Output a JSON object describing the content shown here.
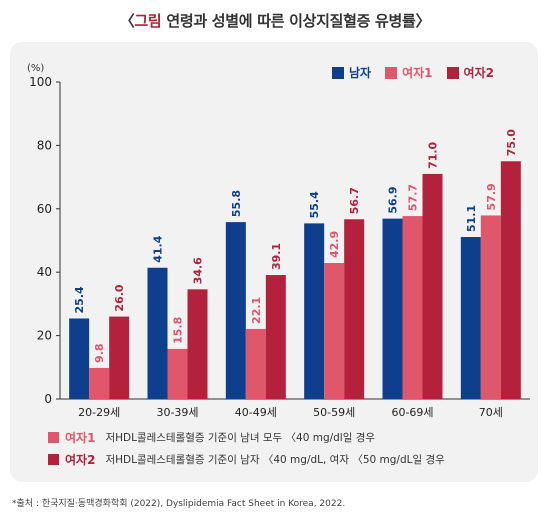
{
  "title": {
    "bracket_open": "〈",
    "figure_label": "그림",
    "text": " 연령과 성별에 따른 이상지질혈증 유병률",
    "bracket_close": "〉"
  },
  "unit_label": "(%)",
  "colors": {
    "male": "#0d3f8c",
    "female1": "#e0566a",
    "female2": "#b4213c",
    "panel_bg": "#f2f2f2"
  },
  "notes": [
    {
      "label": "여자1",
      "text": "저HDL콜레스테롤혈증 기준이 남녀 모두 〈40 mg/dl일 경우"
    },
    {
      "label": "여자2",
      "text": "저HDL콜레스테롤혈증 기준이 남자 〈40 mg/dL, 여자 〈50 mg/dL일 경우"
    }
  ],
  "source": "*출처 : 한국지질·동맥경화학회 (2022), Dyslipidemia Fact Sheet   in Korea, 2022.",
  "chart_data": {
    "type": "bar",
    "title": "연령과 성별에 따른 이상지질혈증 유병률",
    "ylabel": "(%)",
    "ylim": [
      0,
      100
    ],
    "yticks": [
      0,
      20,
      40,
      60,
      80,
      100
    ],
    "grid": false,
    "legend_position": "top-right",
    "categories": [
      "20-29세",
      "30-39세",
      "40-49세",
      "50-59세",
      "60-69세",
      "70세"
    ],
    "series": [
      {
        "name": "남자",
        "values": [
          25.4,
          41.4,
          55.8,
          55.4,
          56.9,
          51.1
        ]
      },
      {
        "name": "여자1",
        "values": [
          9.8,
          15.8,
          22.1,
          42.9,
          57.7,
          57.9
        ]
      },
      {
        "name": "여자2",
        "values": [
          26.0,
          34.6,
          39.1,
          56.7,
          71.0,
          75.0
        ]
      }
    ]
  }
}
